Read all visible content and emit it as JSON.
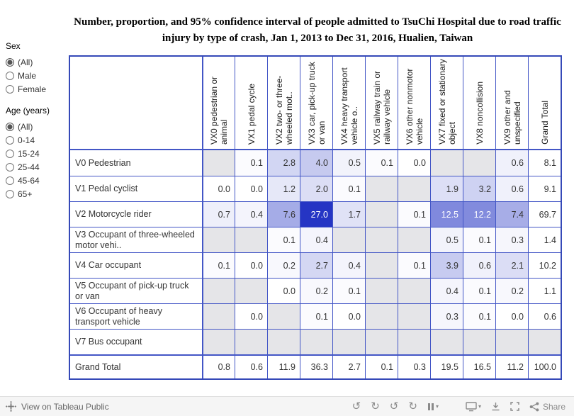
{
  "title": "Number, proportion, and 95% confidence interval of people admitted to TsuChi Hospital due to road traffic injury by type of crash, Jan 1, 2013 to Dec 31, 2016, Hualien, Taiwan",
  "filters": {
    "sex": {
      "label": "Sex",
      "options": [
        {
          "label": "(All)",
          "selected": true
        },
        {
          "label": "Male"
        },
        {
          "label": "Female"
        }
      ]
    },
    "age": {
      "label": "Age (years)",
      "options": [
        {
          "label": "(All)",
          "selected": true
        },
        {
          "label": "0-14"
        },
        {
          "label": "15-24"
        },
        {
          "label": "25-44"
        },
        {
          "label": "45-64"
        },
        {
          "label": "65+"
        }
      ]
    }
  },
  "chart_data": {
    "type": "table",
    "heat_max": 27.0,
    "columns": [
      "VX0 pedestrian or animal",
      "VX1 pedal cycle",
      "VX2 two- or three-wheeled mot..",
      "VX3 car, pick-up truck or van",
      "VX4 heavy transport vehicle o..",
      "VX5 railway train or railway vehicle",
      "VX6 other nonmotor vehicle",
      "VX7 fixed or stationary object",
      "VX8 noncollision",
      "VX9 other and unspecified",
      "Grand Total"
    ],
    "rows": [
      {
        "label": "V0 Pedestrian",
        "values": [
          "",
          "0.1",
          "2.8",
          "4.0",
          "0.5",
          "0.1",
          "0.0",
          "",
          "",
          "0.6",
          "8.1"
        ]
      },
      {
        "label": "V1 Pedal cyclist",
        "values": [
          "0.0",
          "0.0",
          "1.2",
          "2.0",
          "0.1",
          "",
          "",
          "1.9",
          "3.2",
          "0.6",
          "9.1"
        ]
      },
      {
        "label": "V2 Motorcycle rider",
        "values": [
          "0.7",
          "0.4",
          "7.6",
          "27.0",
          "1.7",
          "",
          "0.1",
          "12.5",
          "12.2",
          "7.4",
          "69.7"
        ]
      },
      {
        "label": "V3 Occupant of three-wheeled motor vehi..",
        "values": [
          "",
          "",
          "0.1",
          "0.4",
          "",
          "",
          "",
          "0.5",
          "0.1",
          "0.3",
          "1.4"
        ]
      },
      {
        "label": "V4 Car occupant",
        "values": [
          "0.1",
          "0.0",
          "0.2",
          "2.7",
          "0.4",
          "",
          "0.1",
          "3.9",
          "0.6",
          "2.1",
          "10.2"
        ]
      },
      {
        "label": "V5 Occupant of pick-up truck or van",
        "values": [
          "",
          "",
          "0.0",
          "0.2",
          "0.1",
          "",
          "",
          "0.4",
          "0.1",
          "0.2",
          "1.1"
        ]
      },
      {
        "label": "V6 Occupant of heavy transport vehicle",
        "values": [
          "",
          "0.0",
          "",
          "0.1",
          "0.0",
          "",
          "",
          "0.3",
          "0.1",
          "0.0",
          "0.6"
        ]
      },
      {
        "label": "V7 Bus occupant",
        "values": [
          "",
          "",
          "",
          "",
          "",
          "",
          "",
          "",
          "",
          "",
          ""
        ]
      },
      {
        "label": "Grand Total",
        "values": [
          "0.8",
          "0.6",
          "11.9",
          "36.3",
          "2.7",
          "0.1",
          "0.3",
          "19.5",
          "16.5",
          "11.2",
          "100.0"
        ]
      }
    ]
  },
  "colors": {
    "grid": "#4356c6",
    "grid_strong": "#3549b8",
    "heat_max": "#2535c4",
    "empty_cell": "#e5e5e8",
    "toolbar_bg": "#f5f5f5"
  },
  "toolbar": {
    "view_label": "View on Tableau Public",
    "share_label": "Share",
    "icons": {
      "undo": "↺",
      "redo": "↻",
      "replay": "↺",
      "refresh": "↻",
      "caret": "▾"
    }
  }
}
